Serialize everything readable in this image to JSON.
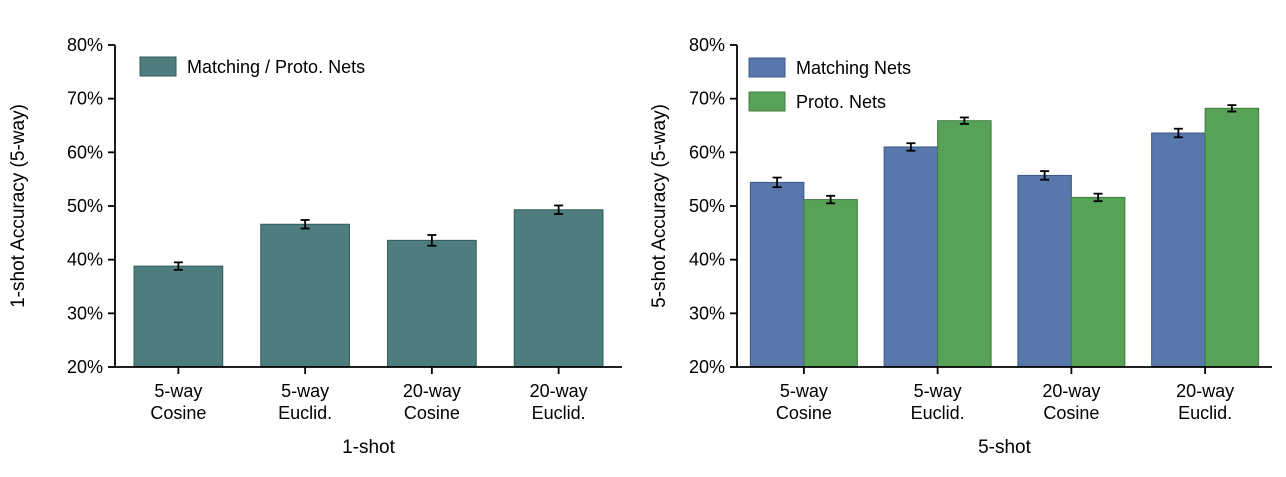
{
  "figure": {
    "background": "#ffffff",
    "text_color": "#000000",
    "axis_color": "#000000"
  },
  "chart_data": [
    {
      "type": "bar",
      "title": "",
      "xlabel": "1-shot",
      "ylabel": "1-shot Accuracy (5-way)",
      "ylim": [
        20,
        80
      ],
      "yticks": [
        20,
        30,
        40,
        50,
        60,
        70,
        80
      ],
      "ytick_labels": [
        "20%",
        "30%",
        "40%",
        "50%",
        "60%",
        "70%",
        "80%"
      ],
      "categories": [
        [
          "5-way",
          "Cosine"
        ],
        [
          "5-way",
          "Euclid."
        ],
        [
          "20-way",
          "Cosine"
        ],
        [
          "20-way",
          "Euclid."
        ]
      ],
      "grid": false,
      "legend_position": "top-left",
      "series": [
        {
          "name": "Matching / Proto. Nets",
          "color": "#4e7d7d",
          "edge_color": "#335a5a",
          "values": [
            38.8,
            46.6,
            43.6,
            49.3
          ],
          "errors": [
            0.7,
            0.8,
            1.0,
            0.8
          ]
        }
      ]
    },
    {
      "type": "bar",
      "title": "",
      "xlabel": "5-shot",
      "ylabel": "5-shot Accuracy (5-way)",
      "ylim": [
        20,
        80
      ],
      "yticks": [
        20,
        30,
        40,
        50,
        60,
        70,
        80
      ],
      "ytick_labels": [
        "20%",
        "30%",
        "40%",
        "50%",
        "60%",
        "70%",
        "80%"
      ],
      "categories": [
        [
          "5-way",
          "Cosine"
        ],
        [
          "5-way",
          "Euclid."
        ],
        [
          "20-way",
          "Cosine"
        ],
        [
          "20-way",
          "Euclid."
        ]
      ],
      "grid": false,
      "legend_position": "top-left",
      "series": [
        {
          "name": "Matching Nets",
          "color": "#5878ac",
          "edge_color": "#3c5a88",
          "values": [
            54.4,
            61.0,
            55.7,
            63.6
          ],
          "errors": [
            0.9,
            0.7,
            0.8,
            0.8
          ]
        },
        {
          "name": "Proto. Nets",
          "color": "#58a258",
          "edge_color": "#3f7d3f",
          "values": [
            51.2,
            65.9,
            51.6,
            68.2
          ],
          "errors": [
            0.7,
            0.6,
            0.7,
            0.6
          ]
        }
      ]
    }
  ]
}
